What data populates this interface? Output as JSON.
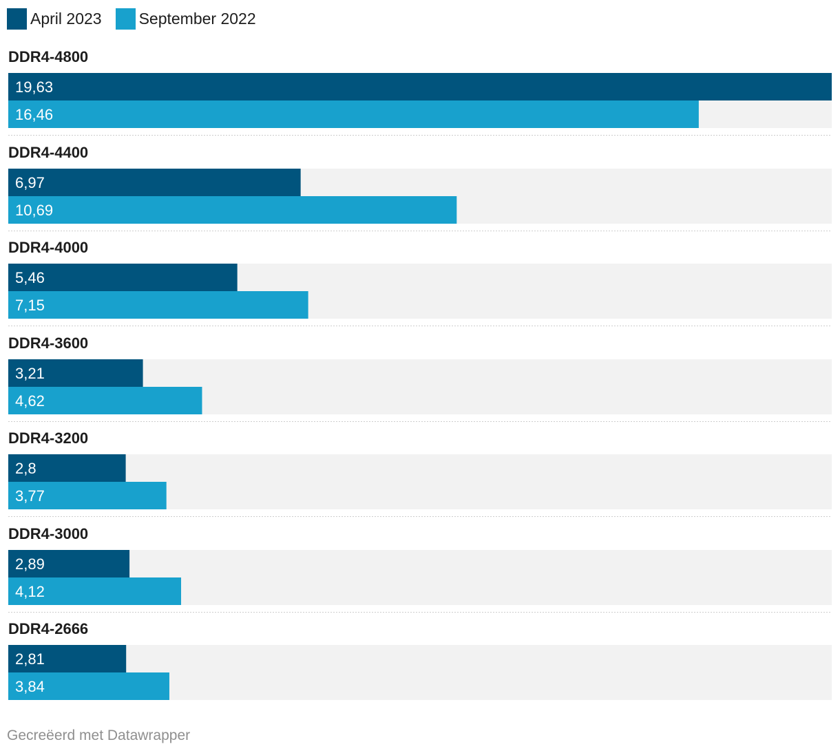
{
  "colors": {
    "april": "#01547d",
    "september": "#18a1cd",
    "track": "#f2f2f2",
    "separator": "#cccccc"
  },
  "legend": [
    {
      "label": "April 2023",
      "color": "#01547d"
    },
    {
      "label": "September 2022",
      "color": "#18a1cd"
    }
  ],
  "chart_data": {
    "type": "bar",
    "orientation": "horizontal",
    "categories": [
      "DDR4-4800",
      "DDR4-4400",
      "DDR4-4000",
      "DDR4-3600",
      "DDR4-3200",
      "DDR4-3000",
      "DDR4-2666"
    ],
    "series": [
      {
        "name": "April 2023",
        "values": [
          19.63,
          6.97,
          5.46,
          3.21,
          2.8,
          2.89,
          2.81
        ],
        "labels": [
          "19,63",
          "6,97",
          "5,46",
          "3,21",
          "2,8",
          "2,89",
          "2,81"
        ]
      },
      {
        "name": "September 2022",
        "values": [
          16.46,
          10.69,
          7.15,
          4.62,
          3.77,
          4.12,
          3.84
        ],
        "labels": [
          "16,46",
          "10,69",
          "7,15",
          "4,62",
          "3,77",
          "4,12",
          "3,84"
        ]
      }
    ],
    "xlim": [
      0,
      19.63
    ],
    "legend_position": "top-left",
    "grid": false
  },
  "footer": "Gecreëerd met Datawrapper"
}
